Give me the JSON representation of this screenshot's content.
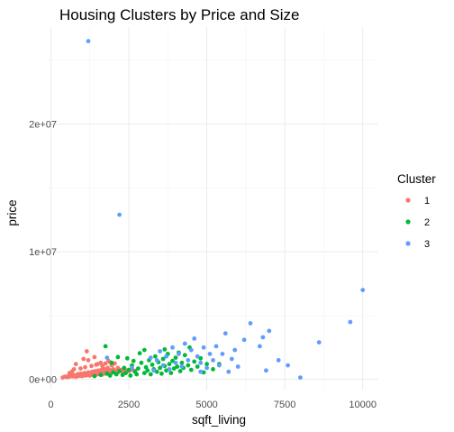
{
  "chart_data": {
    "type": "scatter",
    "title": "Housing Clusters by Price and Size",
    "xlabel": "sqft_living",
    "ylabel": "price",
    "xlim": [
      -100,
      10500
    ],
    "ylim": [
      -800000,
      27600000
    ],
    "x_ticks": [
      0,
      2500,
      5000,
      7500,
      10000
    ],
    "x_tick_labels": [
      "0",
      "2500",
      "5000",
      "7500",
      "10000"
    ],
    "y_ticks": [
      0,
      10000000,
      20000000
    ],
    "y_tick_labels": [
      "0e+00",
      "1e+07",
      "2e+07"
    ],
    "grid": true,
    "legend": {
      "title": "Cluster",
      "position": "right"
    },
    "series": [
      {
        "name": "1",
        "color": "#F8766D",
        "points": [
          [
            380,
            150000
          ],
          [
            450,
            220000
          ],
          [
            520,
            180000
          ],
          [
            560,
            260000
          ],
          [
            600,
            210000
          ],
          [
            650,
            300000
          ],
          [
            700,
            240000
          ],
          [
            720,
            350000
          ],
          [
            760,
            280000
          ],
          [
            800,
            200000
          ],
          [
            820,
            320000
          ],
          [
            860,
            410000
          ],
          [
            880,
            260000
          ],
          [
            900,
            350000
          ],
          [
            930,
            300000
          ],
          [
            950,
            450000
          ],
          [
            980,
            380000
          ],
          [
            1000,
            250000
          ],
          [
            1020,
            420000
          ],
          [
            1050,
            330000
          ],
          [
            1080,
            500000
          ],
          [
            1100,
            400000
          ],
          [
            1120,
            300000
          ],
          [
            1150,
            460000
          ],
          [
            1180,
            360000
          ],
          [
            1200,
            550000
          ],
          [
            1220,
            420000
          ],
          [
            1250,
            300000
          ],
          [
            1280,
            480000
          ],
          [
            1300,
            380000
          ],
          [
            1320,
            600000
          ],
          [
            1350,
            450000
          ],
          [
            1380,
            520000
          ],
          [
            1400,
            350000
          ],
          [
            1420,
            650000
          ],
          [
            1450,
            480000
          ],
          [
            1480,
            400000
          ],
          [
            1500,
            560000
          ],
          [
            1520,
            700000
          ],
          [
            1550,
            430000
          ],
          [
            1580,
            600000
          ],
          [
            1600,
            500000
          ],
          [
            1620,
            750000
          ],
          [
            1650,
            380000
          ],
          [
            1680,
            650000
          ],
          [
            1700,
            540000
          ],
          [
            1720,
            800000
          ],
          [
            1750,
            460000
          ],
          [
            1780,
            700000
          ],
          [
            1800,
            600000
          ],
          [
            1820,
            900000
          ],
          [
            1850,
            500000
          ],
          [
            1880,
            750000
          ],
          [
            1900,
            650000
          ],
          [
            1950,
            550000
          ],
          [
            2000,
            800000
          ],
          [
            2050,
            600000
          ],
          [
            2100,
            700000
          ],
          [
            2150,
            550000
          ],
          [
            2200,
            650000
          ],
          [
            2250,
            750000
          ],
          [
            2300,
            600000
          ],
          [
            2400,
            700000
          ],
          [
            2500,
            650000
          ],
          [
            2600,
            750000
          ],
          [
            2700,
            680000
          ],
          [
            950,
            850000
          ],
          [
            1100,
            950000
          ],
          [
            1300,
            1050000
          ],
          [
            1450,
            1150000
          ],
          [
            1600,
            1300000
          ],
          [
            1750,
            1250000
          ],
          [
            1850,
            1450000
          ],
          [
            1950,
            1100000
          ],
          [
            2050,
            1250000
          ],
          [
            1200,
            1500000
          ],
          [
            1400,
            1750000
          ],
          [
            1500,
            1200000
          ],
          [
            1650,
            1050000
          ],
          [
            1150,
            2200000
          ],
          [
            800,
            1200000
          ],
          [
            1050,
            1600000
          ],
          [
            1900,
            1350000
          ],
          [
            2150,
            900000
          ],
          [
            2350,
            850000
          ],
          [
            600,
            500000
          ],
          [
            680,
            620000
          ],
          [
            740,
            800000
          ]
        ]
      },
      {
        "name": "2",
        "color": "#00BA38",
        "points": [
          [
            1400,
            250000
          ],
          [
            1600,
            350000
          ],
          [
            1750,
            2600000
          ],
          [
            1800,
            450000
          ],
          [
            1900,
            300000
          ],
          [
            2000,
            550000
          ],
          [
            2100,
            400000
          ],
          [
            2200,
            650000
          ],
          [
            2300,
            350000
          ],
          [
            2350,
            900000
          ],
          [
            2400,
            500000
          ],
          [
            2500,
            750000
          ],
          [
            2550,
            300000
          ],
          [
            2600,
            1100000
          ],
          [
            2700,
            600000
          ],
          [
            2750,
            400000
          ],
          [
            2800,
            850000
          ],
          [
            2900,
            1300000
          ],
          [
            3000,
            500000
          ],
          [
            3050,
            950000
          ],
          [
            3100,
            700000
          ],
          [
            3150,
            1500000
          ],
          [
            3200,
            400000
          ],
          [
            3250,
            1150000
          ],
          [
            3300,
            800000
          ],
          [
            3350,
            1800000
          ],
          [
            3400,
            600000
          ],
          [
            3450,
            1350000
          ],
          [
            3500,
            900000
          ],
          [
            3550,
            450000
          ],
          [
            3600,
            1600000
          ],
          [
            3650,
            1050000
          ],
          [
            3700,
            700000
          ],
          [
            3750,
            2000000
          ],
          [
            3800,
            1200000
          ],
          [
            3850,
            500000
          ],
          [
            3900,
            1450000
          ],
          [
            3950,
            850000
          ],
          [
            4000,
            1700000
          ],
          [
            4050,
            1000000
          ],
          [
            4100,
            2100000
          ],
          [
            4150,
            650000
          ],
          [
            4200,
            1300000
          ],
          [
            4250,
            900000
          ],
          [
            4300,
            1900000
          ],
          [
            4400,
            1100000
          ],
          [
            4500,
            750000
          ],
          [
            4600,
            1400000
          ],
          [
            4700,
            1000000
          ],
          [
            4800,
            1650000
          ],
          [
            4900,
            550000
          ],
          [
            5000,
            1200000
          ],
          [
            5200,
            800000
          ],
          [
            3000,
            2300000
          ],
          [
            2450,
            1650000
          ],
          [
            2850,
            2050000
          ],
          [
            3650,
            2350000
          ],
          [
            4450,
            2500000
          ],
          [
            5400,
            1200000
          ],
          [
            1950,
            1300000
          ],
          [
            2150,
            1750000
          ],
          [
            2650,
            1450000
          ]
        ]
      },
      {
        "name": "3",
        "color": "#619CFF",
        "points": [
          [
            1200,
            26500000
          ],
          [
            2200,
            12900000
          ],
          [
            10000,
            7000000
          ],
          [
            9600,
            4500000
          ],
          [
            8600,
            2900000
          ],
          [
            8000,
            150000
          ],
          [
            7300,
            1500000
          ],
          [
            7000,
            3800000
          ],
          [
            6800,
            3300000
          ],
          [
            6700,
            2600000
          ],
          [
            6400,
            4400000
          ],
          [
            6200,
            3100000
          ],
          [
            6000,
            1000000
          ],
          [
            5900,
            2300000
          ],
          [
            5800,
            1600000
          ],
          [
            5600,
            3600000
          ],
          [
            5500,
            2000000
          ],
          [
            5400,
            1100000
          ],
          [
            5300,
            2600000
          ],
          [
            5200,
            1500000
          ],
          [
            5100,
            2000000
          ],
          [
            5000,
            900000
          ],
          [
            4900,
            2500000
          ],
          [
            4800,
            1300000
          ],
          [
            4700,
            1800000
          ],
          [
            4600,
            3200000
          ],
          [
            4500,
            2300000
          ],
          [
            4400,
            1500000
          ],
          [
            4300,
            2800000
          ],
          [
            4200,
            1000000
          ],
          [
            4100,
            2000000
          ],
          [
            4000,
            1300000
          ],
          [
            3900,
            2500000
          ],
          [
            3800,
            800000
          ],
          [
            3700,
            1800000
          ],
          [
            3600,
            1100000
          ],
          [
            3500,
            2200000
          ],
          [
            3400,
            1500000
          ],
          [
            3300,
            700000
          ],
          [
            3200,
            1700000
          ],
          [
            7600,
            1100000
          ],
          [
            6900,
            700000
          ],
          [
            5700,
            600000
          ],
          [
            4800,
            600000
          ],
          [
            1800,
            1700000
          ],
          [
            2600,
            900000
          ]
        ]
      }
    ]
  }
}
